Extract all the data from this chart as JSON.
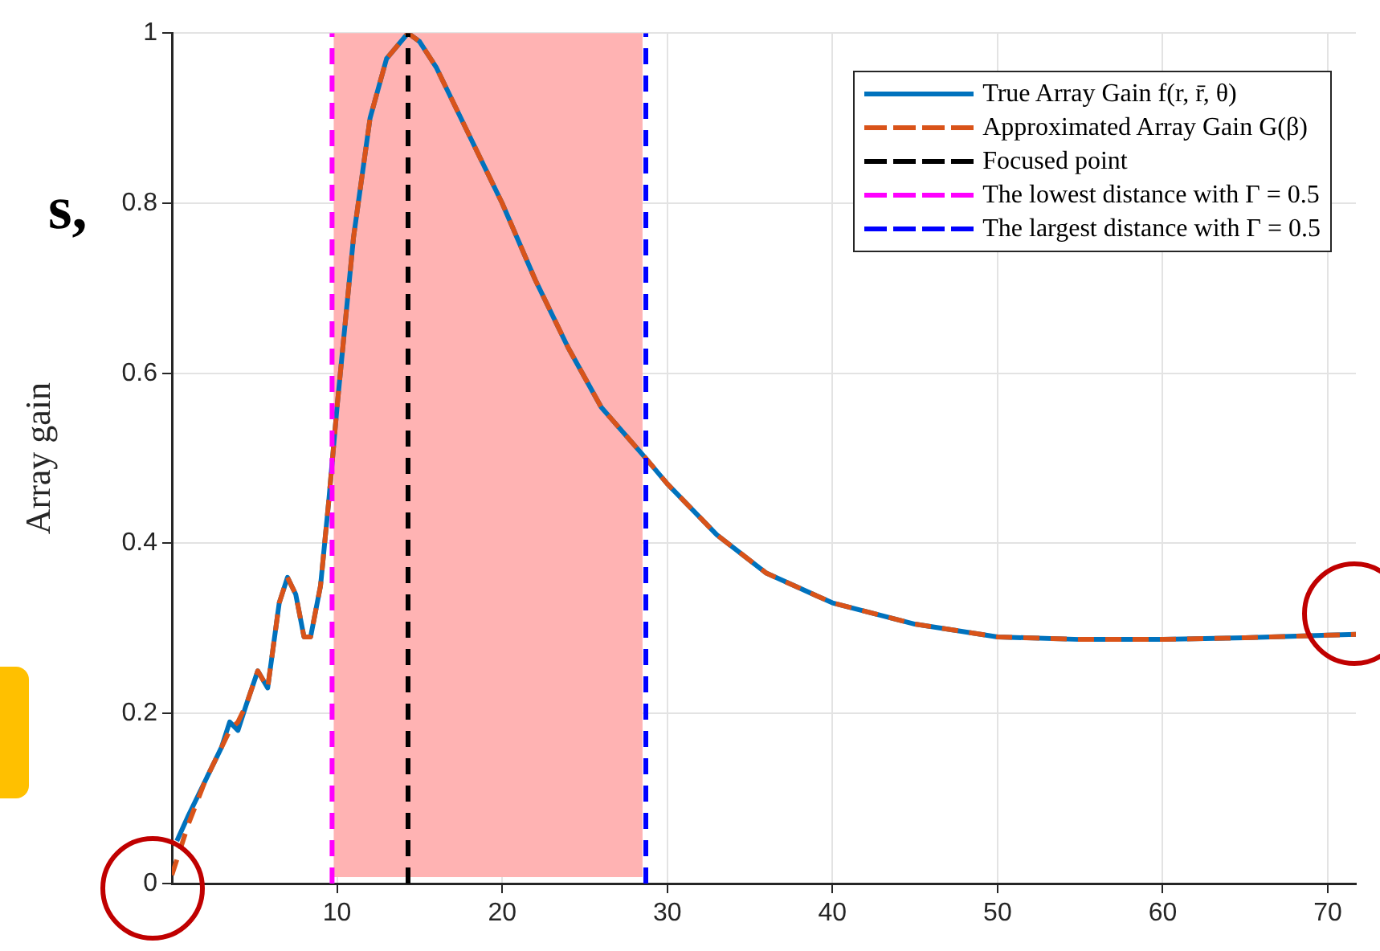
{
  "chart_data": {
    "type": "line",
    "ylabel": "Array gain",
    "annotations": [
      "s,"
    ],
    "xlim": [
      0,
      71.7
    ],
    "ylim": [
      0,
      1
    ],
    "xticks": [
      10,
      20,
      30,
      40,
      50,
      60,
      70
    ],
    "yticks": [
      0,
      0.2,
      0.4,
      0.6,
      0.8,
      1
    ],
    "grid": true,
    "legend": "top right",
    "marker": "none",
    "series": [
      {
        "name": "True Array Gain f(r, r̄, θ)",
        "color": "#0072bd",
        "line_style": "solid",
        "x": [
          0.3,
          1,
          2,
          3,
          3.5,
          4,
          4.5,
          5.2,
          5.8,
          6.5,
          7,
          7.5,
          8,
          8.4,
          9,
          9.5,
          10,
          11,
          12,
          13,
          14.3,
          15,
          16,
          18,
          20,
          22,
          24,
          26,
          28.7,
          30,
          33,
          36,
          40,
          45,
          50,
          55,
          60,
          65,
          70,
          71.7
        ],
        "values": [
          0.05,
          0.08,
          0.12,
          0.16,
          0.19,
          0.18,
          0.21,
          0.25,
          0.23,
          0.33,
          0.36,
          0.34,
          0.29,
          0.29,
          0.35,
          0.45,
          0.56,
          0.76,
          0.9,
          0.97,
          1,
          0.99,
          0.96,
          0.88,
          0.8,
          0.71,
          0.63,
          0.56,
          0.5,
          0.47,
          0.41,
          0.365,
          0.33,
          0.305,
          0.29,
          0.287,
          0.287,
          0.289,
          0.292,
          0.293
        ]
      },
      {
        "name": "Approximated Array Gain G(β)",
        "color": "#d95319",
        "line_style": "dashed",
        "x": [
          0,
          1,
          2,
          3,
          3.5,
          4,
          4.5,
          5.2,
          5.8,
          6.5,
          7,
          7.5,
          8,
          8.4,
          9,
          9.5,
          10,
          11,
          12,
          13,
          14.3,
          15,
          16,
          18,
          20,
          22,
          24,
          26,
          28.7,
          30,
          33,
          36,
          40,
          45,
          50,
          55,
          60,
          65,
          70,
          71.7
        ],
        "values": [
          0.01,
          0.07,
          0.12,
          0.16,
          0.18,
          0.19,
          0.21,
          0.25,
          0.23,
          0.33,
          0.36,
          0.34,
          0.29,
          0.29,
          0.35,
          0.45,
          0.56,
          0.76,
          0.9,
          0.97,
          1,
          0.99,
          0.96,
          0.88,
          0.8,
          0.71,
          0.63,
          0.56,
          0.5,
          0.47,
          0.41,
          0.365,
          0.33,
          0.305,
          0.29,
          0.287,
          0.287,
          0.289,
          0.292,
          0.293
        ]
      },
      {
        "name": "Focused point",
        "color": "#000000",
        "line_style": "dashed",
        "x": [
          14.3,
          14.3
        ],
        "values": [
          0,
          1
        ]
      },
      {
        "name": "The lowest distance with Γ = 0.5",
        "color": "#ff00ff",
        "line_style": "dashed",
        "x": [
          9.7,
          9.7
        ],
        "values": [
          0,
          1
        ]
      },
      {
        "name": "The largest distance with Γ = 0.5",
        "color": "#0000ff",
        "line_style": "dashed",
        "x": [
          28.7,
          28.7
        ],
        "values": [
          0,
          1
        ]
      }
    ],
    "bands": [
      {
        "axis": "x",
        "from": 9.8,
        "to": 28.5,
        "color": "#ffb3b3"
      }
    ]
  }
}
